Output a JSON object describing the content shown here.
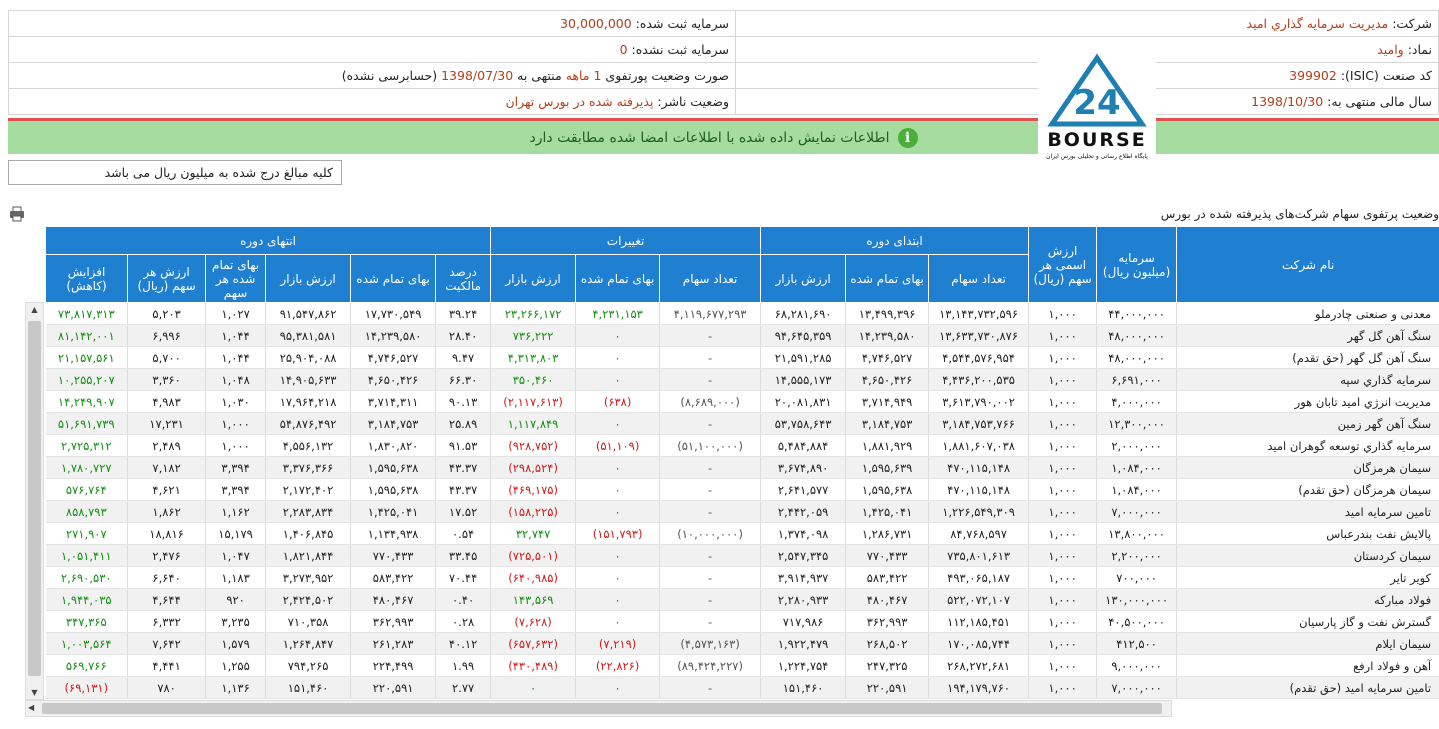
{
  "info": {
    "company_label": "شرکت:",
    "company": "مدیریت سرمایه گذاري امید",
    "symbol_label": "نماد:",
    "symbol": "وامید",
    "isic_label": "کد صنعت (ISIC):",
    "isic": "399902",
    "fiscal_label": "سال مالی منتهی به:",
    "fiscal": "1398/10/30",
    "registered_label": "سرمایه ثبت شده:",
    "registered": "30,000,000",
    "unregistered_label": "سرمایه ثبت نشده:",
    "unregistered": "0",
    "portfolio_label": "صورت وضعیت پورتفوی",
    "portfolio_period": "1 ماهه",
    "portfolio_mid": "منتهی به",
    "portfolio_date": "1398/07/30",
    "portfolio_note": "(حسابرسی نشده)",
    "publisher_label": "وضعیت ناشر:",
    "publisher": "پذیرفته شده در بورس تهران"
  },
  "logo": {
    "number": "24",
    "name": "BOURSE",
    "tagline": "پایگاه اطلاع رسانی و تحلیلی بورس ایران"
  },
  "banner": "اطلاعات نمایش داده شده با اطلاعات امضا شده مطابقت دارد",
  "note": "کلیه مبالغ درج شده به میلیون ریال می باشد",
  "table": {
    "caption": "وضعیت پرتفوی سهام شرکت‌های پذیرفته شده در بورس",
    "groups": [
      "ابتدای دوره",
      "تغییرات",
      "انتهای دوره"
    ],
    "columns": [
      "نام شرکت",
      "سرمایه (میلیون ریال)",
      "ارزش اسمی هر سهم (ریال)",
      "تعداد سهام",
      "بهای تمام شده",
      "ارزش بازار",
      "تعداد سهام",
      "بهای تمام شده",
      "ارزش بازار",
      "درصد مالکیت",
      "بهای تمام شده",
      "ارزش بازار",
      "بهای تمام شده هر سهم",
      "ارزش هر سهم (ریال)",
      "افزایش (کاهش)"
    ],
    "rows": [
      [
        "معدنی و صنعتی چادرملو",
        "۴۴,۰۰۰,۰۰۰",
        "۱,۰۰۰",
        "۱۳,۱۴۳,۷۳۲,۵۹۶",
        "۱۳,۴۹۹,۳۹۶",
        "۶۸,۲۸۱,۶۹۰",
        "۴,۱۱۹,۶۷۷,۲۹۳",
        "۴,۲۳۱,۱۵۳",
        "۲۳,۲۶۶,۱۷۲",
        "۳۹.۲۴",
        "۱۷,۷۳۰,۵۴۹",
        "۹۱,۵۴۷,۸۶۲",
        "۱,۰۲۷",
        "۵,۲۰۳",
        "۷۳,۸۱۷,۳۱۳"
      ],
      [
        "سنگ آهن گل گهر",
        "۴۸,۰۰۰,۰۰۰",
        "۱,۰۰۰",
        "۱۳,۶۳۳,۷۳۰,۸۷۶",
        "۱۴,۲۳۹,۵۸۰",
        "۹۴,۶۴۵,۳۵۹",
        "-",
        "۰",
        "۷۳۶,۲۲۲",
        "۲۸.۴۰",
        "۱۴,۲۳۹,۵۸۰",
        "۹۵,۳۸۱,۵۸۱",
        "۱,۰۴۴",
        "۶,۹۹۶",
        "۸۱,۱۴۲,۰۰۱"
      ],
      [
        "سنگ آهن گل گهر (حق تقدم)",
        "۴۸,۰۰۰,۰۰۰",
        "۱,۰۰۰",
        "۴,۵۴۴,۵۷۶,۹۵۴",
        "۴,۷۴۶,۵۲۷",
        "۲۱,۵۹۱,۲۸۵",
        "-",
        "۰",
        "۴,۳۱۳,۸۰۳",
        "۹.۴۷",
        "۴,۷۴۶,۵۲۷",
        "۲۵,۹۰۴,۰۸۸",
        "۱,۰۴۴",
        "۵,۷۰۰",
        "۲۱,۱۵۷,۵۶۱"
      ],
      [
        "سرمایه گذاري سپه",
        "۶,۶۹۱,۰۰۰",
        "۱,۰۰۰",
        "۴,۴۳۶,۲۰۰,۵۳۵",
        "۴,۶۵۰,۴۲۶",
        "۱۴,۵۵۵,۱۷۳",
        "-",
        "۰",
        "۳۵۰,۴۶۰",
        "۶۶.۳۰",
        "۴,۶۵۰,۴۲۶",
        "۱۴,۹۰۵,۶۳۳",
        "۱,۰۴۸",
        "۳,۳۶۰",
        "۱۰,۲۵۵,۲۰۷"
      ],
      [
        "مدیریت انرژي امید تابان هور",
        "۴,۰۰۰,۰۰۰",
        "۱,۰۰۰",
        "۳,۶۱۳,۷۹۰,۰۰۲",
        "۳,۷۱۴,۹۴۹",
        "۲۰,۰۸۱,۸۳۱",
        "(۸,۶۸۹,۰۰۰)",
        "(۶۳۸)",
        "(۲,۱۱۷,۶۱۳)",
        "۹۰.۱۳",
        "۳,۷۱۴,۳۱۱",
        "۱۷,۹۶۴,۲۱۸",
        "۱,۰۳۰",
        "۴,۹۸۳",
        "۱۴,۲۴۹,۹۰۷"
      ],
      [
        "سنگ آهن گهر زمین",
        "۱۲,۳۰۰,۰۰۰",
        "۱,۰۰۰",
        "۳,۱۸۴,۷۵۳,۷۶۶",
        "۳,۱۸۴,۷۵۳",
        "۵۳,۷۵۸,۶۴۳",
        "-",
        "۰",
        "۱,۱۱۷,۸۴۹",
        "۲۵.۸۹",
        "۳,۱۸۴,۷۵۳",
        "۵۴,۸۷۶,۴۹۲",
        "۱,۰۰۰",
        "۱۷,۲۳۱",
        "۵۱,۶۹۱,۷۳۹"
      ],
      [
        "سرمایه گذاري توسعه گوهران امید",
        "۲,۰۰۰,۰۰۰",
        "۱,۰۰۰",
        "۱,۸۸۱,۶۰۷,۰۳۸",
        "۱,۸۸۱,۹۲۹",
        "۵,۴۸۴,۸۸۴",
        "(۵۱,۱۰۰,۰۰۰)",
        "(۵۱,۱۰۹)",
        "(۹۲۸,۷۵۲)",
        "۹۱.۵۳",
        "۱,۸۳۰,۸۲۰",
        "۴,۵۵۶,۱۳۲",
        "۱,۰۰۰",
        "۲,۴۸۹",
        "۲,۷۲۵,۳۱۲"
      ],
      [
        "سیمان هرمزگان",
        "۱,۰۸۴,۰۰۰",
        "۱,۰۰۰",
        "۴۷۰,۱۱۵,۱۴۸",
        "۱,۵۹۵,۶۳۹",
        "۳,۶۷۴,۸۹۰",
        "-",
        "۰",
        "(۲۹۸,۵۲۴)",
        "۴۳.۳۷",
        "۱,۵۹۵,۶۳۸",
        "۳,۳۷۶,۳۶۶",
        "۳,۳۹۴",
        "۷,۱۸۲",
        "۱,۷۸۰,۷۲۷"
      ],
      [
        "سیمان هرمزگان (حق تقدم)",
        "۱,۰۸۴,۰۰۰",
        "۱,۰۰۰",
        "۴۷۰,۱۱۵,۱۴۸",
        "۱,۵۹۵,۶۳۸",
        "۲,۶۴۱,۵۷۷",
        "-",
        "۰",
        "(۴۶۹,۱۷۵)",
        "۴۳.۳۷",
        "۱,۵۹۵,۶۳۸",
        "۲,۱۷۲,۴۰۲",
        "۳,۳۹۴",
        "۴,۶۲۱",
        "۵۷۶,۷۶۴"
      ],
      [
        "تامین سرمایه امید",
        "۷,۰۰۰,۰۰۰",
        "۱,۰۰۰",
        "۱,۲۲۶,۵۴۹,۳۰۹",
        "۱,۴۲۵,۰۴۱",
        "۲,۴۴۲,۰۵۹",
        "-",
        "۰",
        "(۱۵۸,۲۲۵)",
        "۱۷.۵۲",
        "۱,۴۲۵,۰۴۱",
        "۲,۲۸۳,۸۳۴",
        "۱,۱۶۲",
        "۱,۸۶۲",
        "۸۵۸,۷۹۳"
      ],
      [
        "پالایش نفت بندرعباس",
        "۱۳,۸۰۰,۰۰۰",
        "۱,۰۰۰",
        "۸۴,۷۶۸,۵۹۷",
        "۱,۲۸۶,۷۳۱",
        "۱,۳۷۴,۰۹۸",
        "(۱۰,۰۰۰,۰۰۰)",
        "(۱۵۱,۷۹۳)",
        "۳۲,۷۴۷",
        "۰.۵۴",
        "۱,۱۳۴,۹۳۸",
        "۱,۴۰۶,۸۴۵",
        "۱۵,۱۷۹",
        "۱۸,۸۱۶",
        "۲۷۱,۹۰۷"
      ],
      [
        "سیمان کردستان",
        "۲,۲۰۰,۰۰۰",
        "۱,۰۰۰",
        "۷۳۵,۸۰۱,۶۱۳",
        "۷۷۰,۴۳۳",
        "۲,۵۴۷,۳۴۵",
        "-",
        "۰",
        "(۷۲۵,۵۰۱)",
        "۳۳.۴۵",
        "۷۷۰,۴۳۳",
        "۱,۸۲۱,۸۴۴",
        "۱,۰۴۷",
        "۲,۴۷۶",
        "۱,۰۵۱,۴۱۱"
      ],
      [
        "کویر تایر",
        "۷۰۰,۰۰۰",
        "۱,۰۰۰",
        "۴۹۳,۰۶۵,۱۸۷",
        "۵۸۳,۴۲۲",
        "۳,۹۱۴,۹۳۷",
        "-",
        "۰",
        "(۶۴۰,۹۸۵)",
        "۷۰.۴۴",
        "۵۸۳,۴۲۲",
        "۳,۲۷۳,۹۵۲",
        "۱,۱۸۳",
        "۶,۶۴۰",
        "۲,۶۹۰,۵۳۰"
      ],
      [
        "فولاد مبارکه",
        "۱۳۰,۰۰۰,۰۰۰",
        "۱,۰۰۰",
        "۵۲۲,۰۷۲,۱۰۷",
        "۴۸۰,۴۶۷",
        "۲,۲۸۰,۹۳۳",
        "-",
        "۰",
        "۱۴۳,۵۶۹",
        "۰.۴۰",
        "۴۸۰,۴۶۷",
        "۲,۴۲۴,۵۰۲",
        "۹۲۰",
        "۴,۶۴۴",
        "۱,۹۴۴,۰۳۵"
      ],
      [
        "گسترش نفت و گاز پارسیان",
        "۴۰,۵۰۰,۰۰۰",
        "۱,۰۰۰",
        "۱۱۲,۱۸۵,۴۵۱",
        "۳۶۲,۹۹۳",
        "۷۱۷,۹۸۶",
        "-",
        "۰",
        "(۷,۶۲۸)",
        "۰.۲۸",
        "۳۶۲,۹۹۳",
        "۷۱۰,۳۵۸",
        "۳,۲۳۵",
        "۶,۳۳۲",
        "۳۴۷,۳۶۵"
      ],
      [
        "سیمان ایلام",
        "۴۱۲,۵۰۰",
        "۱,۰۰۰",
        "۱۷۰,۰۸۵,۷۴۴",
        "۲۶۸,۵۰۲",
        "۱,۹۲۲,۴۷۹",
        "(۴,۵۷۳,۱۶۳)",
        "(۷,۲۱۹)",
        "(۶۵۷,۶۳۲)",
        "۴۰.۱۲",
        "۲۶۱,۲۸۳",
        "۱,۲۶۴,۸۴۷",
        "۱,۵۷۹",
        "۷,۶۴۲",
        "۱,۰۰۳,۵۶۴"
      ],
      [
        "آهن و فولاد ارفع",
        "۹,۰۰۰,۰۰۰",
        "۱,۰۰۰",
        "۲۶۸,۲۷۲,۶۸۱",
        "۲۴۷,۳۲۵",
        "۱,۲۲۴,۷۵۴",
        "(۸۹,۴۲۴,۲۲۷)",
        "(۲۲,۸۲۶)",
        "(۴۳۰,۴۸۹)",
        "۱.۹۹",
        "۲۲۴,۴۹۹",
        "۷۹۴,۲۶۵",
        "۱,۲۵۵",
        "۴,۴۴۱",
        "۵۶۹,۷۶۶"
      ],
      [
        "تامین سرمایه امید (حق تقدم)",
        "۷,۰۰۰,۰۰۰",
        "۱,۰۰۰",
        "۱۹۴,۱۷۹,۷۶۰",
        "۲۲۰,۵۹۱",
        "۱۵۱,۴۶۰",
        "-",
        "۰",
        "۰",
        "۲.۷۷",
        "۲۲۰,۵۹۱",
        "۱۵۱,۴۶۰",
        "۱,۱۳۶",
        "۷۸۰",
        "(۶۹,۱۳۱)"
      ]
    ]
  }
}
